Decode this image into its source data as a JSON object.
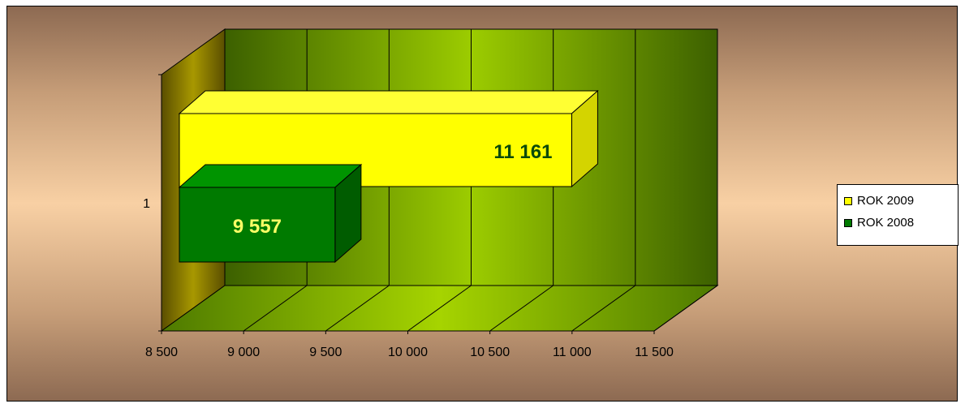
{
  "chart_data": {
    "type": "bar",
    "orientation": "horizontal",
    "three_d": true,
    "categories": [
      "1"
    ],
    "xlim": [
      8500,
      11500
    ],
    "x_ticks": [
      "8 500",
      "9 000",
      "9 500",
      "10 000",
      "10 500",
      "11 000",
      "11 500"
    ],
    "x_tick_values": [
      8500,
      9000,
      9500,
      10000,
      10500,
      11000,
      11500
    ],
    "series": [
      {
        "name": "ROK 2009",
        "values": [
          11161
        ],
        "label": "11 161",
        "color": "#ffff00",
        "label_color": "#0a4a0a"
      },
      {
        "name": "ROK 2008",
        "values": [
          9557
        ],
        "label": "9 557",
        "color": "#007a00",
        "label_color": "#ffff66"
      }
    ],
    "gridlines": true,
    "legend_position": "right"
  }
}
